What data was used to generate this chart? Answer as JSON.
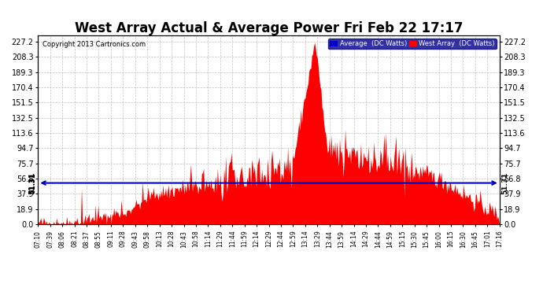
{
  "title": "West Array Actual & Average Power Fri Feb 22 17:17",
  "copyright": "Copyright 2013 Cartronics.com",
  "legend_avg": "Average  (DC Watts)",
  "legend_west": "West Array  (DC Watts)",
  "avg_value": 51.31,
  "yticks": [
    0.0,
    18.9,
    37.9,
    56.8,
    75.7,
    94.7,
    113.6,
    132.5,
    151.5,
    170.4,
    189.3,
    208.3,
    227.2
  ],
  "ymax": 235,
  "xtick_labels": [
    "07:10",
    "07:39",
    "08:06",
    "08:21",
    "08:37",
    "08:55",
    "09:11",
    "09:28",
    "09:43",
    "09:58",
    "10:13",
    "10:28",
    "10:43",
    "10:58",
    "11:14",
    "11:29",
    "11:44",
    "11:59",
    "12:14",
    "12:29",
    "12:44",
    "12:59",
    "13:14",
    "13:29",
    "13:44",
    "13:59",
    "14:14",
    "14:29",
    "14:44",
    "14:59",
    "15:15",
    "15:30",
    "15:45",
    "16:00",
    "16:15",
    "16:30",
    "16:45",
    "17:01",
    "17:16"
  ],
  "bar_color": "#FF0000",
  "avg_line_color": "#0000BB",
  "background_color": "#FFFFFF",
  "grid_color": "#BBBBBB",
  "title_fontsize": 12,
  "avg_label": "51.31"
}
